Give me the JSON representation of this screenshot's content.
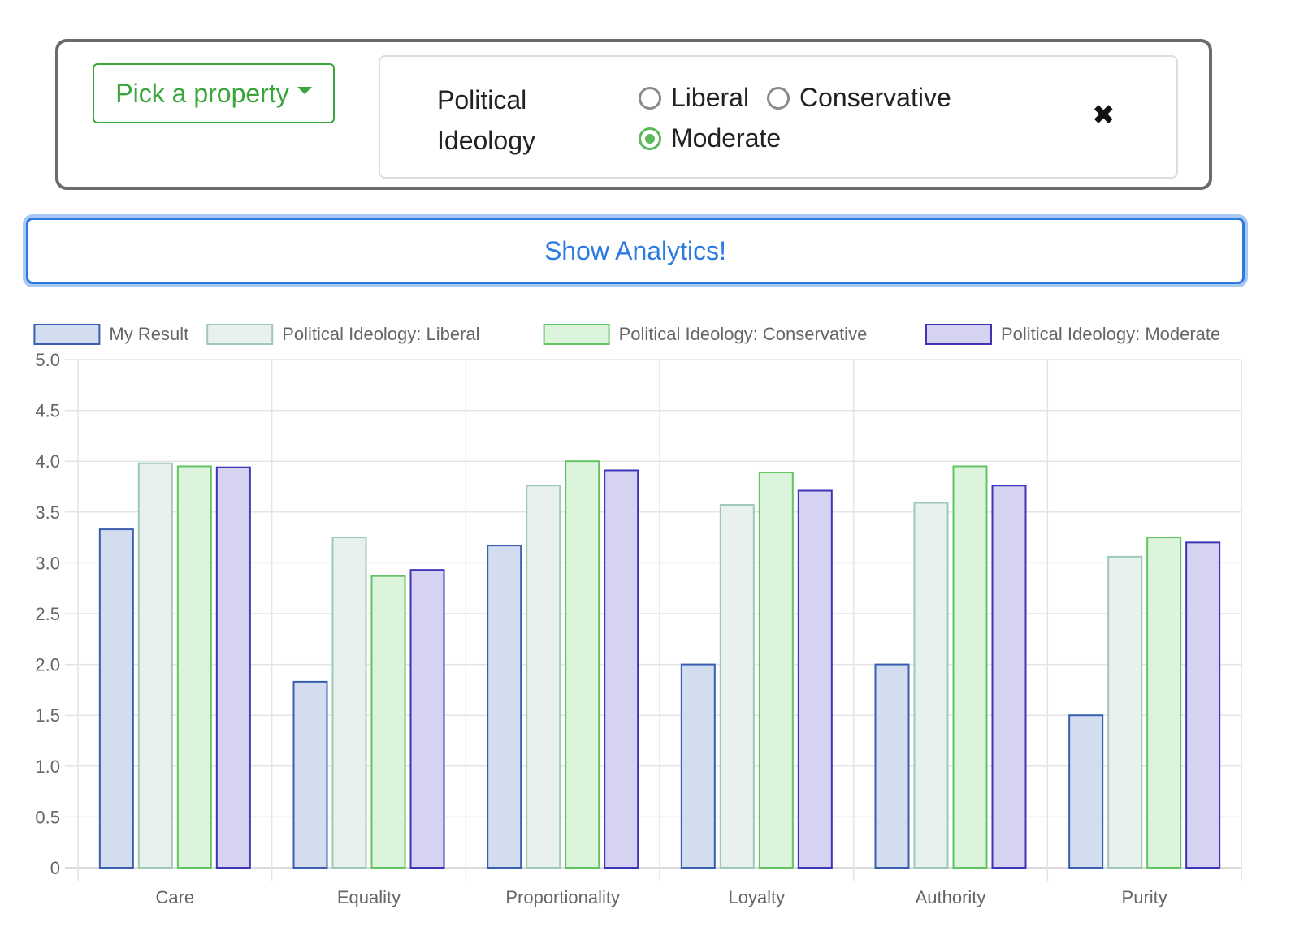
{
  "filter": {
    "pick_label": "Pick a property",
    "property_name": "Political Ideology",
    "options": [
      {
        "label": "Liberal",
        "checked": false
      },
      {
        "label": "Conservative",
        "checked": false
      },
      {
        "label": "Moderate",
        "checked": true
      }
    ],
    "close_glyph": "✖"
  },
  "analytics_button": "Show Analytics!",
  "chart_data": {
    "type": "bar",
    "categories": [
      "Care",
      "Equality",
      "Proportionality",
      "Loyalty",
      "Authority",
      "Purity"
    ],
    "series": [
      {
        "name": "My Result",
        "values": [
          3.33,
          1.83,
          3.17,
          2.0,
          2.0,
          1.5
        ],
        "fill": "#d2ddef",
        "stroke": "#3a5fb0"
      },
      {
        "name": "Political Ideology: Liberal",
        "values": [
          3.98,
          3.25,
          3.76,
          3.57,
          3.59,
          3.06
        ],
        "fill": "#e8f1ee",
        "stroke": "#9ecab5"
      },
      {
        "name": "Political Ideology: Conservative",
        "values": [
          3.95,
          2.87,
          4.0,
          3.89,
          3.95,
          3.25
        ],
        "fill": "#dcf3dc",
        "stroke": "#62c462"
      },
      {
        "name": "Political Ideology: Moderate",
        "values": [
          3.94,
          2.93,
          3.91,
          3.71,
          3.76,
          3.2
        ],
        "fill": "#d6d2f1",
        "stroke": "#3d34b8"
      }
    ],
    "ylim": [
      0,
      5
    ],
    "yticks": [
      "0",
      "0.5",
      "1.0",
      "1.5",
      "2.0",
      "2.5",
      "3.0",
      "3.5",
      "4.0",
      "4.5",
      "5.0"
    ],
    "legend_position": "top",
    "grid": true
  }
}
